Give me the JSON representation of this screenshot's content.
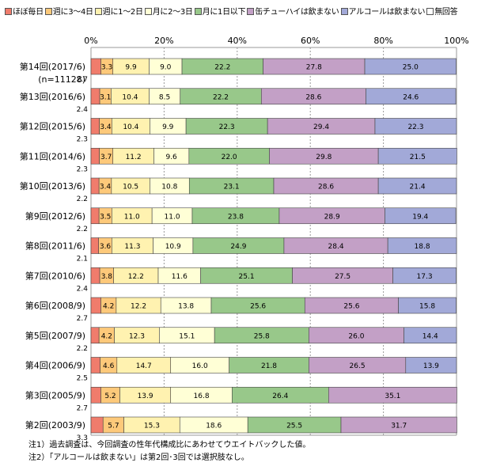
{
  "chart_data": {
    "type": "bar",
    "orientation": "horizontal",
    "stacked": "percent",
    "xlim": [
      0,
      100
    ],
    "x_ticks": [
      "0%",
      "20%",
      "40%",
      "60%",
      "80%",
      "100%"
    ],
    "grid": true,
    "legend_position": "top",
    "categories": [
      "第14回(2017/6)",
      "第13回(2016/6)",
      "第12回(2015/6)",
      "第11回(2014/6)",
      "第10回(2013/6)",
      "第9回(2012/6)",
      "第8回(2011/6)",
      "第7回(2010/6)",
      "第6回(2008/9)",
      "第5回(2007/9)",
      "第4回(2006/9)",
      "第3回(2005/9)",
      "第2回(2003/9)"
    ],
    "category_sublabels": [
      "(n=11128)",
      "",
      "",
      "",
      "",
      "",
      "",
      "",
      "",
      "",
      "",
      "",
      ""
    ],
    "series": [
      {
        "name": "ほぼ毎日",
        "color": "#f07c6c",
        "values": [
          2.7,
          2.4,
          2.3,
          2.3,
          2.2,
          2.2,
          2.1,
          2.4,
          2.7,
          2.2,
          2.5,
          2.7,
          3.3
        ]
      },
      {
        "name": "週に3～4日",
        "color": "#fdc97a",
        "values": [
          3.3,
          3.1,
          3.4,
          3.7,
          3.4,
          3.5,
          3.6,
          3.8,
          4.2,
          4.2,
          4.6,
          5.2,
          5.7
        ]
      },
      {
        "name": "週に1～2日",
        "color": "#fff2b0",
        "values": [
          9.9,
          10.4,
          10.4,
          11.2,
          10.5,
          11.0,
          11.3,
          12.2,
          12.2,
          12.3,
          14.7,
          13.9,
          15.3
        ]
      },
      {
        "name": "月に2～3日",
        "color": "#ffffd6",
        "values": [
          9.0,
          8.5,
          9.9,
          9.6,
          10.8,
          11.0,
          10.9,
          11.6,
          13.8,
          15.1,
          16.0,
          16.8,
          18.6
        ]
      },
      {
        "name": "月に1日以下",
        "color": "#98c88a",
        "values": [
          22.2,
          22.2,
          22.3,
          22.0,
          23.1,
          23.8,
          24.9,
          25.1,
          25.6,
          25.8,
          21.8,
          26.4,
          25.5
        ]
      },
      {
        "name": "缶チューハイは飲まない",
        "color": "#c3a0c6",
        "values": [
          27.8,
          28.6,
          29.4,
          29.8,
          28.6,
          28.9,
          28.4,
          27.5,
          25.6,
          26.0,
          26.5,
          35.1,
          31.7
        ]
      },
      {
        "name": "アルコールは飲まない",
        "color": "#a2a9d8",
        "values": [
          25.0,
          24.6,
          22.3,
          21.5,
          21.4,
          19.4,
          18.8,
          17.3,
          15.8,
          14.4,
          13.9,
          null,
          null
        ]
      },
      {
        "name": "無回答",
        "color": "#ffffff",
        "values": [
          0,
          0,
          0,
          0,
          0,
          0,
          0,
          0,
          0,
          0,
          0,
          0,
          0
        ]
      }
    ],
    "label_font_size": 9
  },
  "notes": [
    "注1）過去調査は、今回調査の性年代構成比にあわせてウエイトバックした値。",
    "注2）「アルコールは飲まない」は第2回･3回では選択肢なし。"
  ]
}
